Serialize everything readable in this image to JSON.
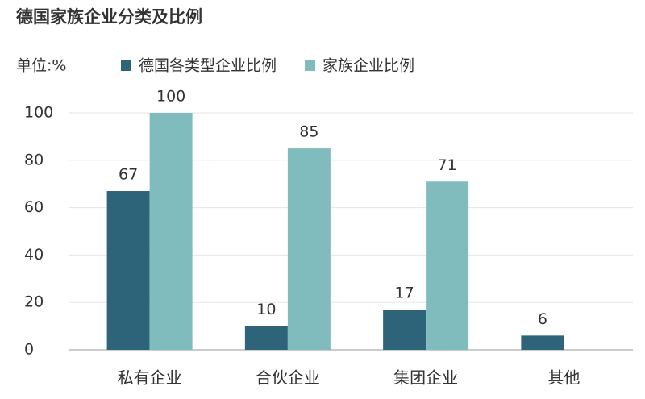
{
  "chart_data": {
    "type": "bar",
    "title": "德国家族企业分类及比例",
    "y_label": "单位:%",
    "categories": [
      "私有企业",
      "合伙企业",
      "集团企业",
      "其他"
    ],
    "series": [
      {
        "name": "德国各类型企业比例",
        "color": "#2e6479",
        "values": [
          67,
          10,
          17,
          6
        ]
      },
      {
        "name": "家族企业比例",
        "color": "#80bcbd",
        "values": [
          100,
          85,
          71,
          null
        ]
      }
    ],
    "ylim": [
      0,
      100
    ],
    "yticks": [
      0,
      20,
      40,
      60,
      80,
      100
    ],
    "grid": true
  }
}
